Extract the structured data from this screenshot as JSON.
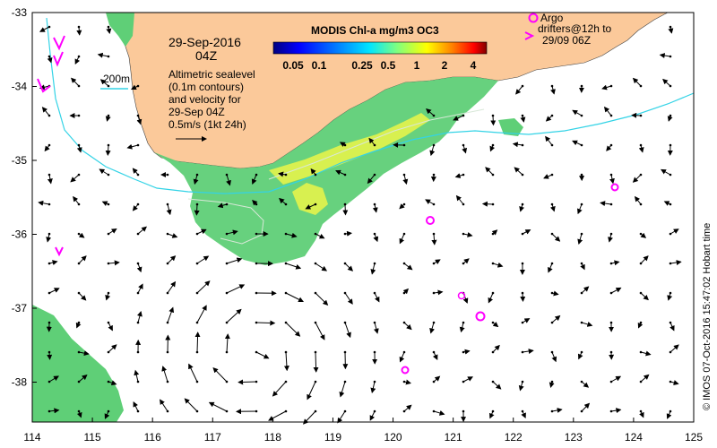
{
  "map": {
    "x_ticks": [
      "114",
      "115",
      "116",
      "117",
      "118",
      "119",
      "120",
      "121",
      "122",
      "123",
      "124",
      "125"
    ],
    "y_ticks": [
      "-33",
      "-34",
      "-35",
      "-36",
      "-37",
      "-38"
    ],
    "date_line1": "29-Sep-2016",
    "date_line2": "04Z",
    "depth_label": "200m",
    "altimetry_lines": [
      "Altimetric sealevel",
      "(0.1m contours)",
      "and velocity for",
      "29-Sep 04Z",
      "0.5m/s (1kt 24h)"
    ],
    "colorbar": {
      "title": "MODIS Chl-a mg/m3 OC3",
      "ticks": [
        "0.05",
        "0.1",
        "0.25",
        "0.5",
        "1",
        "2",
        "4"
      ],
      "colors": [
        "#00007f",
        "#0000ff",
        "#007fff",
        "#00ffff",
        "#7fff7f",
        "#ffff00",
        "#ff7f00",
        "#ff0000",
        "#7f0000"
      ]
    },
    "argo": {
      "line1": "Argo",
      "line2": "drifters@12h to",
      "line3": "29/09 06Z",
      "color": "#ff00ff"
    },
    "credit": "© IMOS 07-Oct-2016 15:47:02 Hobart time",
    "colors": {
      "land": "#fbc99a",
      "chl_green": "#5fcf77",
      "chl_yellow": "#d8f050",
      "isobath": "#33d3e6"
    }
  }
}
